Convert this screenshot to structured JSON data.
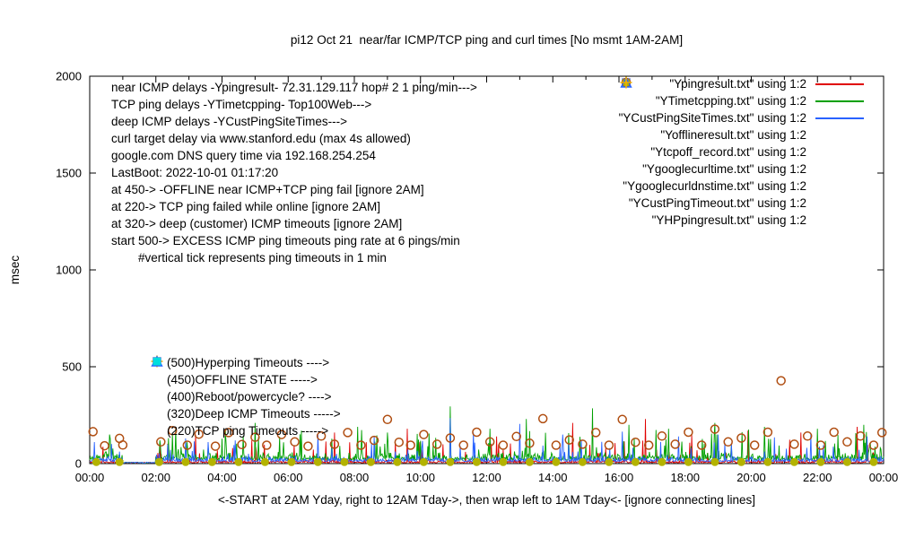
{
  "info_lines": [
    "near ICMP delays -Ypingresult- 72.31.129.117 hop# 2 1 ping/min--->",
    "TCP ping delays -YTimetcpping- Top100Web--->",
    "deep ICMP delays -YCustPingSiteTimes--->",
    "curl target delay via www.stanford.edu (max 4s allowed)",
    "google.com DNS query time via 192.168.254.254",
    "LastBoot: 2022-10-01 01:17:20",
    "at 450-> -OFFLINE near ICMP+TCP ping fail [ignore 2AM]",
    "at 220-> TCP ping failed while online [ignore 2AM]",
    "at 320-> deep (customer) ICMP timeouts [ignore 2AM]",
    "start 500-> EXCESS ICMP ping timeouts ping rate at 6 pings/min",
    "        #vertical tick represents ping timeouts in 1 min"
  ],
  "mid_annotations": [
    {
      "marker": "plus",
      "color": "#f0b000",
      "text": "(500)Hyperping Timeouts ---->"
    },
    {
      "marker": "open-square",
      "color": "#c000c0",
      "text": "(450)OFFLINE STATE ----->"
    },
    {
      "marker": "none",
      "color": "#000000",
      "text": "(400)Reboot/powercycle? ---->"
    },
    {
      "marker": "open-triangle",
      "color": "#2962ff",
      "text": "(320)Deep ICMP Timeouts ----->"
    },
    {
      "marker": "filled-square",
      "color": "#00dede",
      "text": "(220)TCP ping Timeouts ----->"
    }
  ],
  "legend": [
    {
      "label": "\"Ypingresult.txt\" using 1:2",
      "sample": "line",
      "color": "#e00000"
    },
    {
      "label": "\"YTimetcpping.txt\" using 1:2",
      "sample": "line",
      "color": "#00a000"
    },
    {
      "label": "\"YCustPingSiteTimes.txt\" using 1:2",
      "sample": "line",
      "color": "#2962ff"
    },
    {
      "label": "\"Yofflineresult.txt\" using 1:2",
      "sample": "open-square",
      "color": "#c000c0"
    },
    {
      "label": "\"Ytcpoff_record.txt\" using 1:2",
      "sample": "filled-square",
      "color": "#00dede"
    },
    {
      "label": "\"Ygooglecurltime.txt\" using 1:2",
      "sample": "open-circle",
      "color": "#b04e12"
    },
    {
      "label": "\"Ygooglecurldnstime.txt\" using 1:2",
      "sample": "filled-circle",
      "color": "#b3b300"
    },
    {
      "label": "\"YCustPingTimeout.txt\" using 1:2",
      "sample": "open-triangle",
      "color": "#2962ff"
    },
    {
      "label": "\"YHPpingresult.txt\" using 1:2",
      "sample": "plus",
      "color": "#f0b000"
    }
  ],
  "chart_data": {
    "type": "line",
    "title": "pi12 Oct 21  near/far ICMP/TCP ping and curl times [No msmt 1AM-2AM]",
    "xlabel": "<-START at 2AM Yday, right to 12AM Tday->, then wrap left to 1AM Tday<- [ignore connecting lines]",
    "ylabel": "msec",
    "x_hours_range": [
      0,
      24
    ],
    "ylim": [
      0,
      2000
    ],
    "yticks": [
      0,
      500,
      1000,
      1500,
      2000
    ],
    "xtick_labels": [
      "00:00",
      "02:00",
      "04:00",
      "06:00",
      "08:00",
      "10:00",
      "12:00",
      "14:00",
      "16:00",
      "18:00",
      "20:00",
      "22:00",
      "00:00"
    ],
    "grid": "off",
    "legend_position": "top-right",
    "no_measurement_window": "01:00-02:00",
    "line_series": [
      {
        "name": "Ypingresult near ICMP",
        "color": "#e00000",
        "baseline": 4,
        "noise": 16,
        "spike_rate": 0.06,
        "spike_scale": 110,
        "seed": 11,
        "spikes": [
          [
            3.2,
            150
          ],
          [
            4.9,
            120
          ],
          [
            7.4,
            160
          ],
          [
            9.6,
            180
          ],
          [
            12.3,
            140
          ],
          [
            14.6,
            210
          ],
          [
            16.8,
            230
          ],
          [
            18.2,
            150
          ],
          [
            19.9,
            170
          ],
          [
            21.5,
            160
          ],
          [
            23.2,
            190
          ]
        ]
      },
      {
        "name": "YTimetcpping TCP ping",
        "color": "#00a000",
        "baseline": 18,
        "noise": 45,
        "spike_rate": 0.08,
        "spike_scale": 140,
        "seed": 7,
        "spikes": [
          [
            0.5,
            60
          ],
          [
            0.7,
            78
          ],
          [
            2.6,
            180
          ],
          [
            5.0,
            210
          ],
          [
            6.4,
            170
          ],
          [
            8.1,
            190
          ],
          [
            9.0,
            160
          ],
          [
            10.9,
            295
          ],
          [
            12.1,
            180
          ],
          [
            13.2,
            230
          ],
          [
            15.2,
            285
          ],
          [
            16.3,
            200
          ],
          [
            17.5,
            180
          ],
          [
            18.9,
            210
          ],
          [
            20.4,
            190
          ],
          [
            22.0,
            180
          ],
          [
            23.4,
            200
          ]
        ]
      },
      {
        "name": "YCustPingSiteTimes deep ICMP",
        "color": "#2962ff",
        "baseline": 10,
        "noise": 30,
        "spike_rate": 0.06,
        "spike_scale": 100,
        "seed": 3,
        "spikes": [
          [
            2.9,
            130
          ],
          [
            4.4,
            120
          ],
          [
            6.9,
            150
          ],
          [
            8.6,
            140
          ],
          [
            10.9,
            235
          ],
          [
            11.6,
            160
          ],
          [
            13.0,
            205
          ],
          [
            14.3,
            150
          ],
          [
            16.1,
            165
          ],
          [
            17.8,
            140
          ],
          [
            19.0,
            150
          ],
          [
            20.7,
            135
          ],
          [
            21.8,
            155
          ],
          [
            23.5,
            140
          ]
        ]
      }
    ],
    "scatter_series": [
      {
        "name": "Ygooglecurltime",
        "marker": "open-circle",
        "color": "#b04e12",
        "points": [
          [
            0.1,
            165
          ],
          [
            0.45,
            92
          ],
          [
            0.9,
            130
          ],
          [
            1.0,
            96
          ],
          [
            2.15,
            112
          ],
          [
            2.5,
            170
          ],
          [
            2.95,
            95
          ],
          [
            3.3,
            152
          ],
          [
            3.8,
            90
          ],
          [
            4.2,
            160
          ],
          [
            4.6,
            98
          ],
          [
            5.0,
            136
          ],
          [
            5.35,
            95
          ],
          [
            5.8,
            150
          ],
          [
            6.2,
            112
          ],
          [
            6.6,
            90
          ],
          [
            7.0,
            142
          ],
          [
            7.4,
            100
          ],
          [
            7.8,
            160
          ],
          [
            8.2,
            95
          ],
          [
            8.6,
            120
          ],
          [
            9.0,
            228
          ],
          [
            9.35,
            110
          ],
          [
            9.7,
            95
          ],
          [
            10.1,
            150
          ],
          [
            10.5,
            100
          ],
          [
            10.9,
            132
          ],
          [
            11.3,
            95
          ],
          [
            11.7,
            162
          ],
          [
            12.1,
            112
          ],
          [
            12.5,
            95
          ],
          [
            12.9,
            140
          ],
          [
            13.3,
            105
          ],
          [
            13.7,
            232
          ],
          [
            14.1,
            95
          ],
          [
            14.5,
            122
          ],
          [
            14.9,
            100
          ],
          [
            15.3,
            160
          ],
          [
            15.7,
            95
          ],
          [
            16.1,
            228
          ],
          [
            16.5,
            110
          ],
          [
            16.9,
            95
          ],
          [
            17.3,
            142
          ],
          [
            17.7,
            100
          ],
          [
            18.1,
            162
          ],
          [
            18.5,
            95
          ],
          [
            18.9,
            178
          ],
          [
            19.3,
            112
          ],
          [
            19.7,
            132
          ],
          [
            20.1,
            95
          ],
          [
            20.5,
            162
          ],
          [
            20.9,
            428
          ],
          [
            21.3,
            100
          ],
          [
            21.7,
            142
          ],
          [
            22.1,
            95
          ],
          [
            22.5,
            162
          ],
          [
            22.9,
            112
          ],
          [
            23.3,
            142
          ],
          [
            23.7,
            95
          ],
          [
            23.95,
            160
          ]
        ]
      },
      {
        "name": "Ygooglecurldnstime",
        "marker": "filled-circle",
        "color": "#b3b300",
        "points": [
          [
            0.2,
            8
          ],
          [
            0.9,
            8
          ],
          [
            2.1,
            8
          ],
          [
            2.9,
            8
          ],
          [
            3.7,
            8
          ],
          [
            4.5,
            8
          ],
          [
            5.3,
            8
          ],
          [
            6.1,
            8
          ],
          [
            6.9,
            8
          ],
          [
            7.7,
            8
          ],
          [
            8.5,
            8
          ],
          [
            9.3,
            8
          ],
          [
            10.1,
            8
          ],
          [
            10.9,
            8
          ],
          [
            11.7,
            8
          ],
          [
            12.5,
            8
          ],
          [
            13.3,
            8
          ],
          [
            14.1,
            8
          ],
          [
            14.9,
            8
          ],
          [
            15.7,
            8
          ],
          [
            16.5,
            8
          ],
          [
            17.3,
            8
          ],
          [
            18.1,
            8
          ],
          [
            18.9,
            8
          ],
          [
            19.7,
            8
          ],
          [
            20.5,
            8
          ],
          [
            21.3,
            8
          ],
          [
            22.1,
            8
          ],
          [
            22.9,
            8
          ],
          [
            23.7,
            8
          ]
        ]
      }
    ],
    "annotation_levels": {
      "hyperping_timeout": 500,
      "offline_state": 450,
      "reboot_powercycle": 400,
      "deep_icmp_timeout": 320,
      "tcp_ping_timeout": 220
    }
  }
}
